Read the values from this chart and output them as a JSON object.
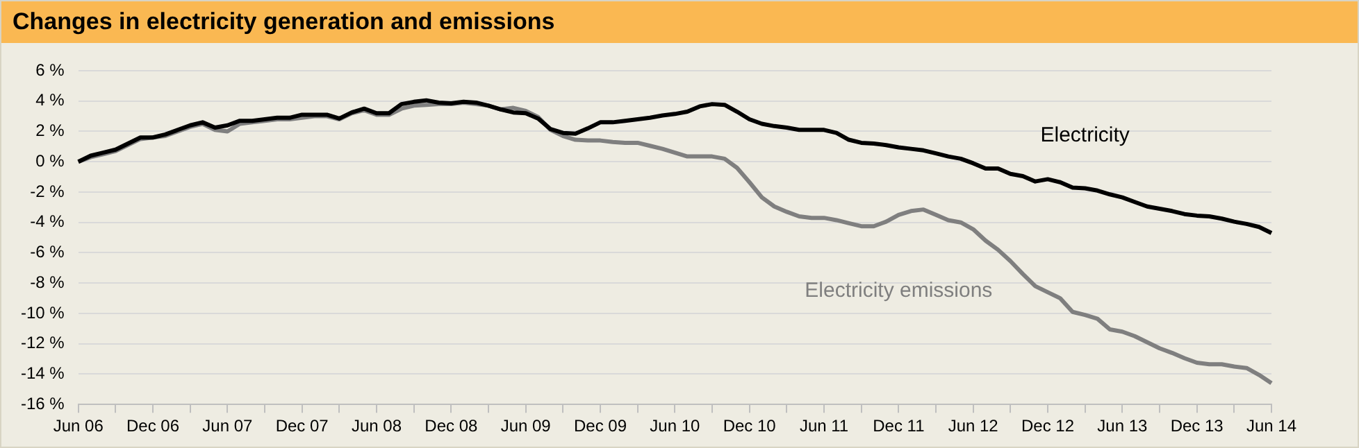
{
  "chart_data": {
    "type": "line",
    "title": "Changes in electricity generation and emissions",
    "categories": [
      "Jun 06",
      null,
      null,
      null,
      null,
      null,
      "Dec 06",
      null,
      null,
      null,
      null,
      null,
      "Jun 07",
      null,
      null,
      null,
      null,
      null,
      "Dec 07",
      null,
      null,
      null,
      null,
      null,
      "Jun 08",
      null,
      null,
      null,
      null,
      null,
      "Dec 08",
      null,
      null,
      null,
      null,
      null,
      "Jun 09",
      null,
      null,
      null,
      null,
      null,
      "Dec 09",
      null,
      null,
      null,
      null,
      null,
      "Jun 10",
      null,
      null,
      null,
      null,
      null,
      "Dec 10",
      null,
      null,
      null,
      null,
      null,
      "Jun 11",
      null,
      null,
      null,
      null,
      null,
      "Dec 11",
      null,
      null,
      null,
      null,
      null,
      "Jun 12",
      null,
      null,
      null,
      null,
      null,
      "Dec 12",
      null,
      null,
      null,
      null,
      null,
      "Jun 13",
      null,
      null,
      null,
      null,
      null,
      "Dec 13",
      null,
      null,
      null,
      null,
      null,
      "Jun 14"
    ],
    "series": [
      {
        "name": "Electricity",
        "color": "#000000",
        "values": [
          0,
          0.4,
          0.6,
          0.8,
          1.2,
          1.6,
          1.6,
          1.8,
          2.1,
          2.4,
          2.6,
          2.25,
          2.4,
          2.7,
          2.7,
          2.8,
          2.9,
          2.9,
          3.1,
          3.1,
          3.1,
          2.85,
          3.25,
          3.5,
          3.2,
          3.2,
          3.8,
          3.95,
          4.05,
          3.9,
          3.85,
          3.95,
          3.9,
          3.7,
          3.45,
          3.25,
          3.2,
          2.85,
          2.15,
          1.9,
          1.85,
          2.2,
          2.6,
          2.6,
          2.7,
          2.8,
          2.9,
          3.05,
          3.15,
          3.3,
          3.65,
          3.8,
          3.75,
          3.3,
          2.8,
          2.5,
          2.35,
          2.25,
          2.1,
          2.1,
          2.1,
          1.9,
          1.45,
          1.25,
          1.2,
          1.1,
          0.95,
          0.85,
          0.75,
          0.55,
          0.35,
          0.2,
          -0.1,
          -0.45,
          -0.45,
          -0.8,
          -0.95,
          -1.3,
          -1.15,
          -1.35,
          -1.7,
          -1.75,
          -1.9,
          -2.15,
          -2.35,
          -2.65,
          -2.95,
          -3.1,
          -3.25,
          -3.45,
          -3.55,
          -3.6,
          -3.75,
          -3.95,
          -4.1,
          -4.3,
          -4.7
        ]
      },
      {
        "name": "Electricity emissions",
        "color": "#7f7f7f",
        "values": [
          0,
          0.3,
          0.5,
          0.7,
          1.1,
          1.5,
          1.6,
          1.7,
          2.0,
          2.3,
          2.5,
          2.1,
          2.0,
          2.5,
          2.6,
          2.7,
          2.8,
          2.8,
          2.9,
          3.0,
          3.0,
          2.8,
          3.2,
          3.4,
          3.1,
          3.1,
          3.5,
          3.7,
          3.75,
          3.8,
          3.8,
          3.9,
          3.8,
          3.7,
          3.45,
          3.55,
          3.35,
          2.95,
          2.1,
          1.7,
          1.45,
          1.4,
          1.4,
          1.3,
          1.25,
          1.25,
          1.05,
          0.85,
          0.6,
          0.35,
          0.35,
          0.35,
          0.2,
          -0.4,
          -1.35,
          -2.35,
          -2.95,
          -3.3,
          -3.6,
          -3.7,
          -3.7,
          -3.85,
          -4.05,
          -4.25,
          -4.25,
          -3.95,
          -3.5,
          -3.25,
          -3.15,
          -3.5,
          -3.85,
          -4.0,
          -4.45,
          -5.2,
          -5.8,
          -6.55,
          -7.4,
          -8.2,
          -8.6,
          -9.0,
          -9.9,
          -10.1,
          -10.35,
          -11.05,
          -11.2,
          -11.5,
          -11.9,
          -12.3,
          -12.6,
          -12.95,
          -13.25,
          -13.35,
          -13.35,
          -13.5,
          -13.6,
          -14.05,
          -14.6
        ]
      }
    ],
    "ylim": [
      -16,
      6
    ],
    "yticks": [
      {
        "value": -16,
        "label": "-16 %"
      },
      {
        "value": -14,
        "label": "-14 %"
      },
      {
        "value": -12,
        "label": "-12 %"
      },
      {
        "value": -10,
        "label": "-10 %"
      },
      {
        "value": -8,
        "label": "-8 %"
      },
      {
        "value": -6,
        "label": "-6 %"
      },
      {
        "value": -4,
        "label": "-4 %"
      },
      {
        "value": -2,
        "label": "-2 %"
      },
      {
        "value": 0,
        "label": "0 %"
      },
      {
        "value": 2,
        "label": "2 %"
      },
      {
        "value": 4,
        "label": "4 %"
      },
      {
        "value": 6,
        "label": "6 %"
      }
    ],
    "grid": "y",
    "legend": false,
    "marker": "none",
    "line_style": "solid"
  }
}
